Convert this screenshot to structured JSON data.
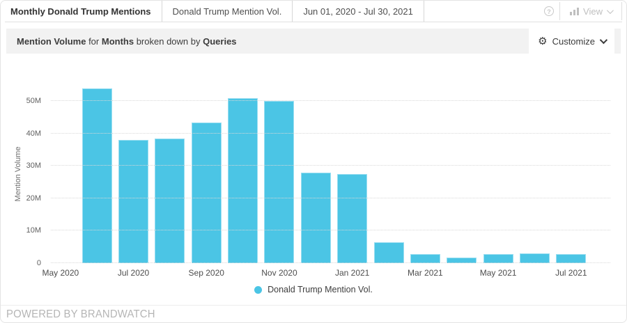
{
  "window": {
    "tabs": [
      {
        "label": "Monthly Donald Trump Mentions",
        "active": true
      },
      {
        "label": "Donald Trump Mention Vol.",
        "active": false
      },
      {
        "label": "Jun 01, 2020 - Jul 30, 2021",
        "active": false
      }
    ],
    "help_icon": "question-mark-circle-icon",
    "view_label": "View",
    "view_icon": "bar-chart-icon"
  },
  "toolbar": {
    "metric": "Mention Volume",
    "for_text": "for",
    "dimension": "Months",
    "broken_text": "broken down by",
    "breakdown": "Queries",
    "customize_label": "Customize",
    "customize_icon": "gear-icon"
  },
  "chart_data": {
    "type": "bar",
    "title": "Mention Volume for Months broken down by Queries",
    "xlabel": "",
    "ylabel": "Mention Volume",
    "unit": "millions of mentions",
    "ylim_millions": [
      0,
      55
    ],
    "grid": true,
    "bar_color": "#4bc5e5",
    "categories": [
      "Jun 2020",
      "Jul 2020",
      "Aug 2020",
      "Sep 2020",
      "Oct 2020",
      "Nov 2020",
      "Dec 2020",
      "Jan 2021",
      "Feb 2021",
      "Mar 2021",
      "Apr 2021",
      "May 2021",
      "Jun 2021",
      "Jul 2021"
    ],
    "series": [
      {
        "name": "Donald Trump Mention Vol.",
        "values_millions": [
          54,
          38,
          38.5,
          43.5,
          51,
          50,
          28,
          27.5,
          6.5,
          2.7,
          1.7,
          2.9,
          3.1,
          2.9
        ]
      }
    ],
    "y_ticks": [
      {
        "value_millions": 0,
        "label": "0"
      },
      {
        "value_millions": 10,
        "label": "10M"
      },
      {
        "value_millions": 20,
        "label": "20M"
      },
      {
        "value_millions": 30,
        "label": "30M"
      },
      {
        "value_millions": 40,
        "label": "40M"
      },
      {
        "value_millions": 50,
        "label": "50M"
      }
    ],
    "x_ticks": [
      "May 2020",
      "Jul 2020",
      "Sep 2020",
      "Nov 2020",
      "Jan 2021",
      "Mar 2021",
      "May 2021",
      "Jul 2021"
    ],
    "legend": [
      {
        "label": "Donald Trump Mention Vol.",
        "color": "#4bc5e5"
      }
    ],
    "legend_position": "bottom"
  },
  "footer": {
    "powered_by": "POWERED BY BRANDWATCH"
  }
}
